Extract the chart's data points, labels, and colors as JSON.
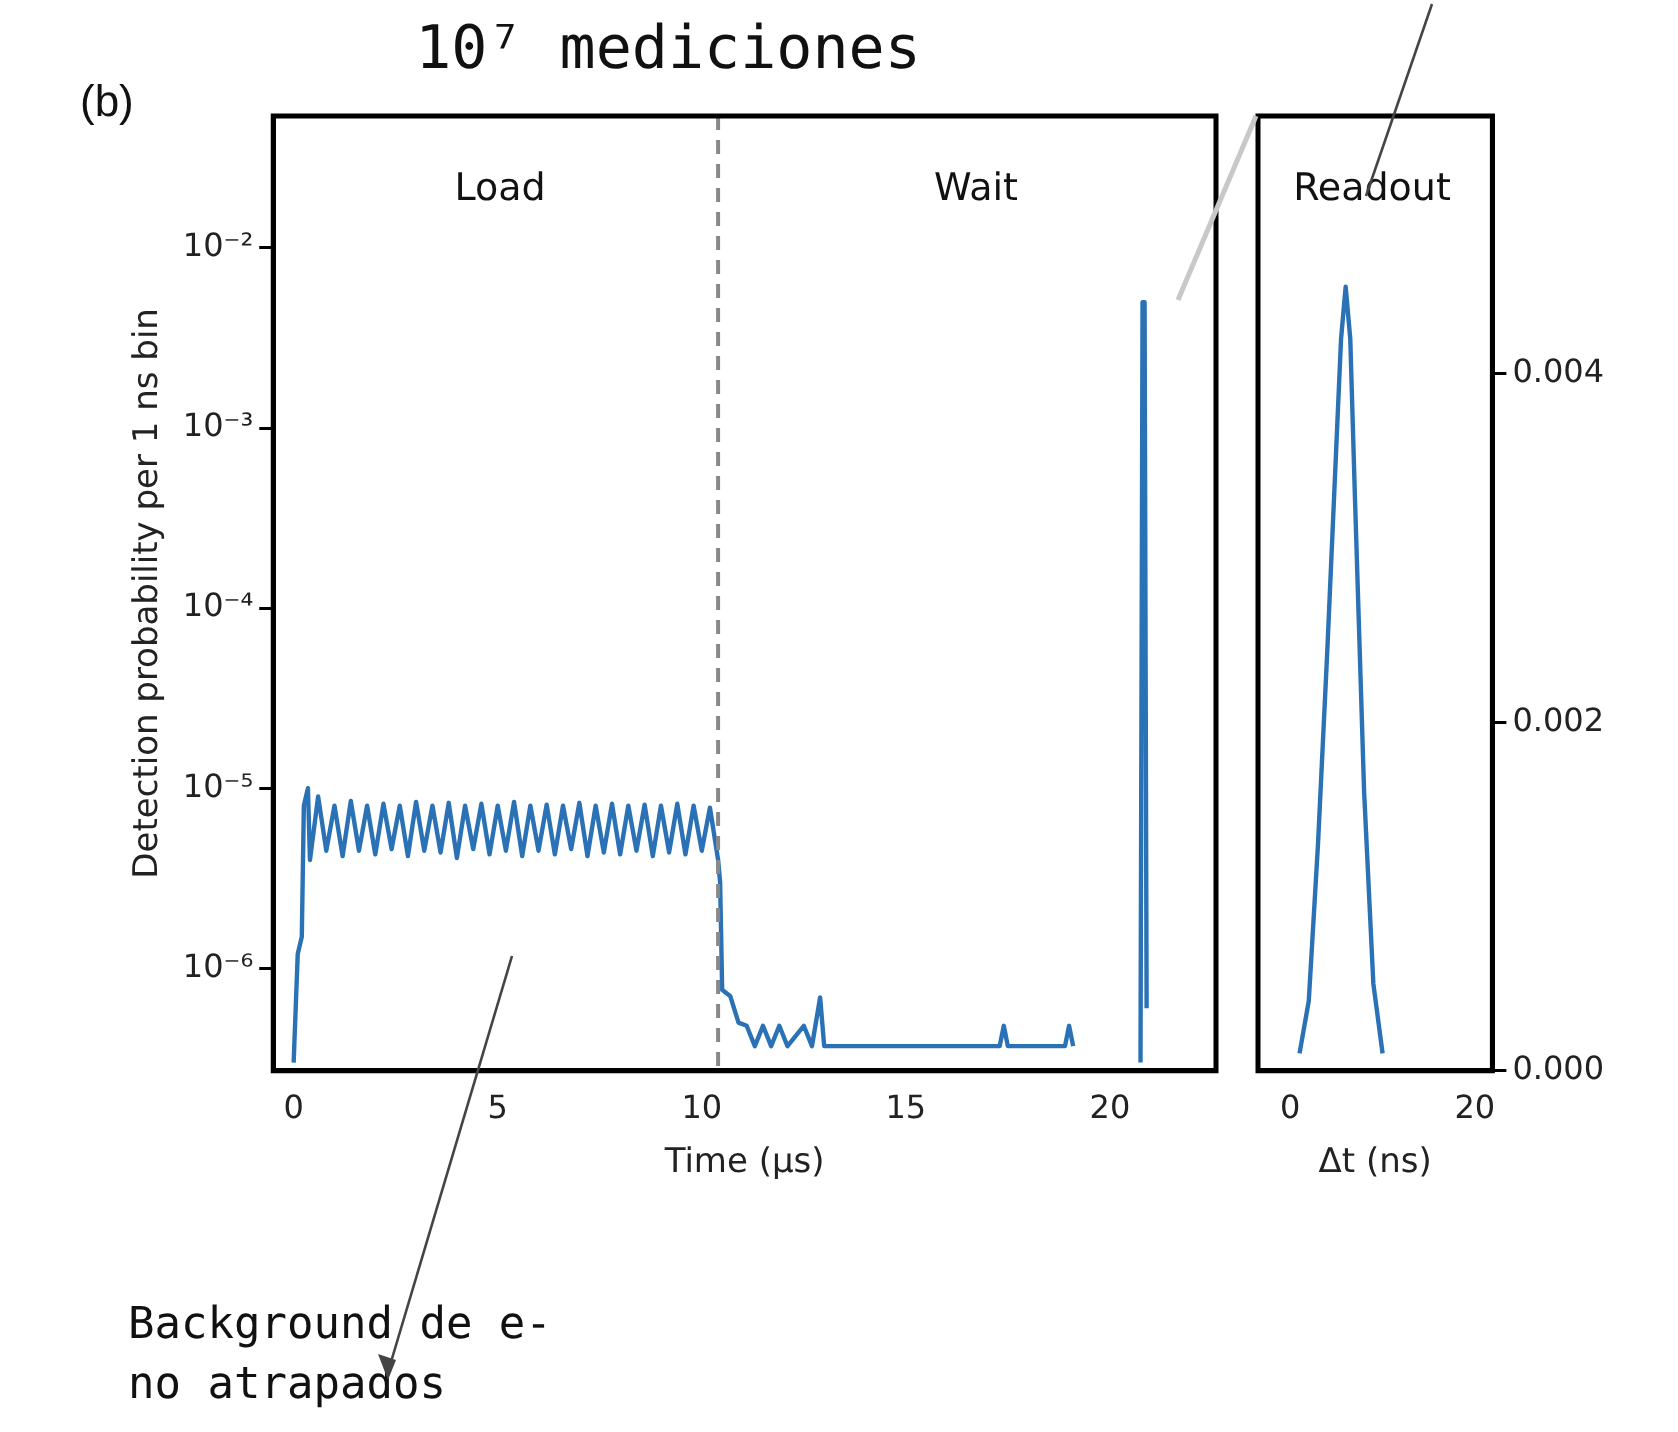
{
  "chart_data": [
    {
      "type": "line",
      "title": "10⁷ mediciones",
      "xlabel": "Time (μs)",
      "ylabel": "Detection probability per 1 ns bin",
      "log": "y",
      "grid": false,
      "legend": false,
      "marker": "none",
      "line_style": "solid",
      "xlim": [
        -0.5,
        22.6
      ],
      "xticks": [
        0,
        5,
        10,
        15,
        20
      ],
      "ylim": [
        2.7e-07,
        0.054
      ],
      "yticks": [
        {
          "value": 1e-06,
          "label": "10⁻⁶"
        },
        {
          "value": 1e-05,
          "label": "10⁻⁵"
        },
        {
          "value": 0.0001,
          "label": "10⁻⁴"
        },
        {
          "value": 0.001,
          "label": "10⁻³"
        },
        {
          "value": 0.01,
          "label": "10⁻²"
        }
      ],
      "ref_lines": [
        {
          "axis": "x",
          "value": 10.4,
          "color": "#888888",
          "line_style": "dashed"
        }
      ],
      "annotations": [
        "(b)",
        "Load",
        "Wait",
        "Background de e- no atrapados"
      ],
      "series": [
        {
          "color": "#2a72b5",
          "x": [
            0,
            0.1,
            0.2,
            0.25,
            0.35,
            0.4,
            0.6,
            0.8,
            1.0,
            1.2,
            1.4,
            1.6,
            1.8,
            2.0,
            2.2,
            2.4,
            2.6,
            2.8,
            3.0,
            3.2,
            3.4,
            3.6,
            3.8,
            4.0,
            4.2,
            4.4,
            4.6,
            4.8,
            5.0,
            5.2,
            5.4,
            5.6,
            5.8,
            6.0,
            6.2,
            6.4,
            6.6,
            6.8,
            7.0,
            7.2,
            7.4,
            7.6,
            7.8,
            8.0,
            8.2,
            8.4,
            8.6,
            8.8,
            9.0,
            9.2,
            9.4,
            9.6,
            9.8,
            10.0,
            10.2,
            10.4,
            10.45,
            10.5,
            10.7,
            10.9,
            11.1,
            11.3,
            11.5,
            11.7,
            11.9,
            12.1,
            12.5,
            12.7,
            12.9,
            13.0,
            13.5,
            14.2,
            14.8,
            16.4,
            17.3,
            17.4,
            17.5,
            18.9,
            19.0,
            19.1,
            19.15,
            20.75,
            20.8,
            20.85,
            20.9
          ],
          "values": [
            3e-07,
            1.2e-06,
            1.5e-06,
            8e-06,
            1e-05,
            4e-06,
            9e-06,
            4.5e-06,
            8e-06,
            4.2e-06,
            8.5e-06,
            4.5e-06,
            8e-06,
            4.3e-06,
            8.2e-06,
            4.6e-06,
            8e-06,
            4.2e-06,
            8.4e-06,
            4.5e-06,
            8e-06,
            4.4e-06,
            8.3e-06,
            4.1e-06,
            8e-06,
            4.6e-06,
            8.2e-06,
            4.3e-06,
            8e-06,
            4.5e-06,
            8.4e-06,
            4.2e-06,
            8e-06,
            4.5e-06,
            8.1e-06,
            4.3e-06,
            8e-06,
            4.6e-06,
            8.3e-06,
            4.2e-06,
            8e-06,
            4.4e-06,
            8.2e-06,
            4.3e-06,
            8e-06,
            4.5e-06,
            8.1e-06,
            4.2e-06,
            8e-06,
            4.4e-06,
            8.2e-06,
            4.3e-06,
            8e-06,
            4.5e-06,
            7.8e-06,
            4e-06,
            3e-06,
            7.6e-07,
            7e-07,
            5e-07,
            4.8e-07,
            3.7e-07,
            4.8e-07,
            3.7e-07,
            4.8e-07,
            3.7e-07,
            4.8e-07,
            3.7e-07,
            6.9e-07,
            3.7e-07,
            3.7e-07,
            3.7e-07,
            3.7e-07,
            3.7e-07,
            3.7e-07,
            4.8e-07,
            3.7e-07,
            3.7e-07,
            4.8e-07,
            3.7e-07,
            null,
            3e-07,
            0.005,
            0.005,
            6e-07
          ]
        }
      ]
    },
    {
      "type": "line",
      "xlabel": "Δt (ns)",
      "grid": false,
      "legend": false,
      "marker": "none",
      "line_style": "solid",
      "xlim": [
        -3.5,
        21.9
      ],
      "xticks": [
        0,
        20
      ],
      "ylim": [
        0,
        0.00548
      ],
      "yticks": [
        {
          "value": 0,
          "label": "0.000"
        },
        {
          "value": 0.002,
          "label": "0.002"
        },
        {
          "value": 0.004,
          "label": "0.004"
        }
      ],
      "annotations": [
        "Readout"
      ],
      "series": [
        {
          "color": "#2a72b5",
          "x": [
            1,
            2,
            3,
            4,
            5,
            5.5,
            6,
            6.5,
            7,
            8,
            9,
            10
          ],
          "values": [
            0.0001,
            0.0004,
            0.0013,
            0.0024,
            0.0036,
            0.0042,
            0.0045,
            0.0042,
            0.0033,
            0.0016,
            0.0005,
            0.0001
          ]
        }
      ]
    }
  ]
}
